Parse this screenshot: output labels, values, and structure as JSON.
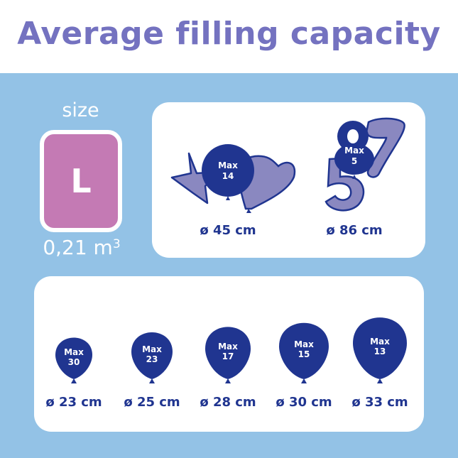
{
  "title": "Average filling capacity",
  "size": {
    "label": "size",
    "value": "L",
    "volume": "0,21 m",
    "volume_unit_exp": "3"
  },
  "colors": {
    "navy": "#203590",
    "lavender": "#8a88c0",
    "pink": "#c47ab4",
    "title": "#7472c0",
    "background": "#93c2e6"
  },
  "special": [
    {
      "max_label": "Max",
      "max": "14",
      "diameter": "ø 45 cm",
      "shapes": [
        "star",
        "round",
        "heart"
      ]
    },
    {
      "max_label": "Max",
      "max": "5",
      "diameter": "ø 86 cm",
      "shapes": [
        "number-8",
        "number-7",
        "number-5"
      ]
    }
  ],
  "balloons": [
    {
      "max_label": "Max",
      "max": "30",
      "diameter": "ø 23 cm"
    },
    {
      "max_label": "Max",
      "max": "23",
      "diameter": "ø 25 cm"
    },
    {
      "max_label": "Max",
      "max": "17",
      "diameter": "ø 28 cm"
    },
    {
      "max_label": "Max",
      "max": "15",
      "diameter": "ø 30 cm"
    },
    {
      "max_label": "Max",
      "max": "13",
      "diameter": "ø 33 cm"
    }
  ]
}
